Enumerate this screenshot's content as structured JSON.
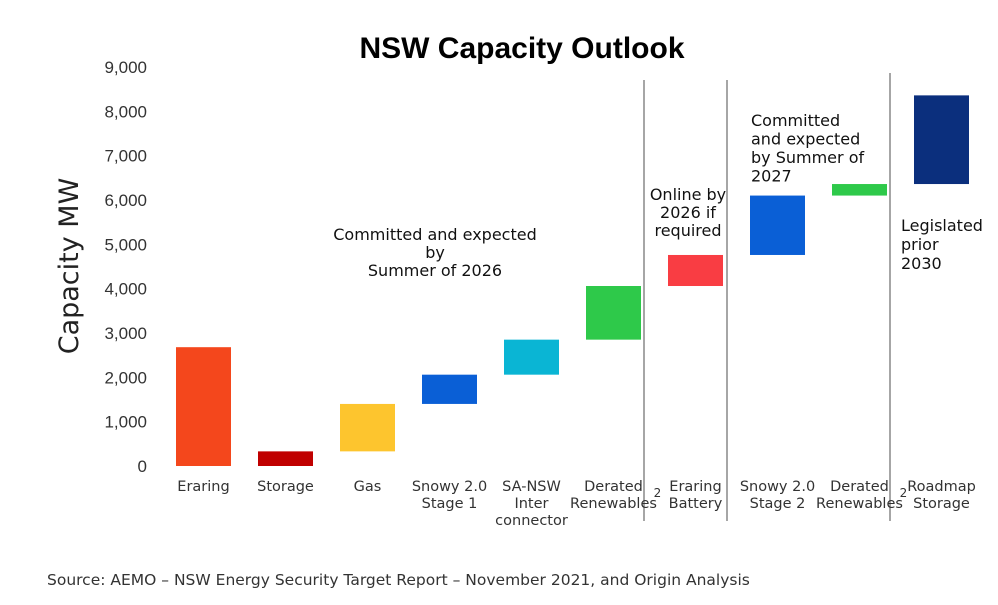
{
  "chart_data": {
    "type": "bar",
    "subtype": "waterfall",
    "title": "NSW Capacity Outlook",
    "ylabel": "Capacity MW",
    "xlabel": "",
    "ylim": [
      0,
      9000
    ],
    "yticks": [
      "0",
      "1,000",
      "2,000",
      "3,000",
      "4,000",
      "5,000",
      "6,000",
      "7,000",
      "8,000",
      "9,000"
    ],
    "grid": false,
    "legend": "none",
    "bars": [
      {
        "category": [
          "Eraring"
        ],
        "base": 0,
        "top": 2680,
        "color": "#f4471c"
      },
      {
        "category": [
          "Storage"
        ],
        "base": 0,
        "top": 330,
        "color": "#c00000"
      },
      {
        "category": [
          "Gas"
        ],
        "base": 330,
        "top": 1400,
        "color": "#fdc52e"
      },
      {
        "category": [
          "Snowy 2.0",
          "Stage 1"
        ],
        "base": 1400,
        "top": 2060,
        "color": "#0a5fd6"
      },
      {
        "category": [
          "SA-NSW",
          "Inter",
          "connector"
        ],
        "base": 2060,
        "top": 2850,
        "color": "#0ab5d4"
      },
      {
        "category": [
          "Derated",
          "Renewables"
        ],
        "sup": "2",
        "base": 2850,
        "top": 4060,
        "color": "#2ec94a"
      },
      {
        "category": [
          "Eraring",
          "Battery"
        ],
        "base": 4060,
        "top": 4760,
        "color": "#f93d43"
      },
      {
        "category": [
          "Snowy 2.0",
          "Stage 2"
        ],
        "base": 4760,
        "top": 6100,
        "color": "#0a5fd6"
      },
      {
        "category": [
          "Derated",
          "Renewables"
        ],
        "sup": "2",
        "base": 6100,
        "top": 6360,
        "color": "#2ec94a"
      },
      {
        "category": [
          "Roadmap",
          "Storage"
        ],
        "base": 6360,
        "top": 8360,
        "color": "#0b2f7d"
      }
    ],
    "annotations": [
      {
        "lines": [
          "Committed and expected",
          "by",
          "Summer of 2026"
        ]
      },
      {
        "lines": [
          "Online by",
          "2026 if",
          "required"
        ]
      },
      {
        "lines": [
          "Committed",
          "and expected",
          "by Summer of",
          "2027"
        ]
      },
      {
        "lines": [
          "Legislated",
          "prior",
          "2030"
        ]
      }
    ]
  },
  "source": "Source: AEMO – NSW Energy Security Target Report – November 2021, and Origin Analysis"
}
